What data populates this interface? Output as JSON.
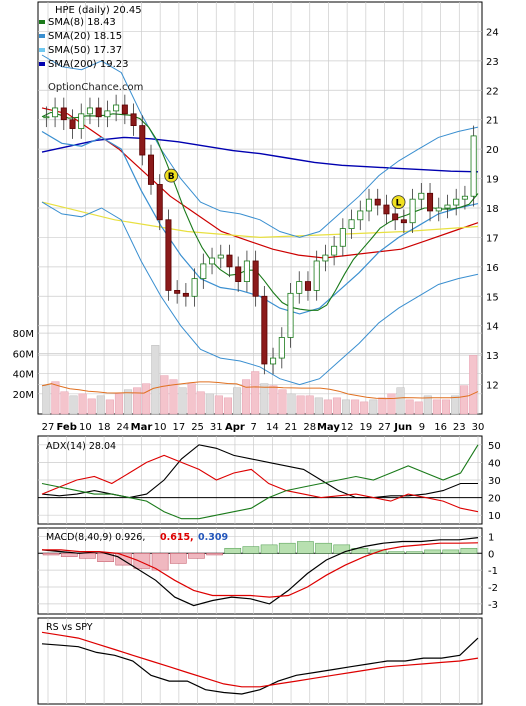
{
  "chart_data": [
    {
      "type": "line",
      "panel": "price",
      "title": "HPE (daily) 20.45",
      "watermark": "OptionChance.com",
      "ylim": [
        11,
        25
      ],
      "y_ticks": [
        12,
        13,
        14,
        15,
        16,
        17,
        18,
        19,
        20,
        21,
        22,
        23,
        24
      ],
      "volume_ticks": [
        "20M",
        "40M",
        "60M",
        "80M"
      ],
      "x_ticks": [
        "27",
        "Feb",
        "10",
        "18",
        "24",
        "Mar",
        "10",
        "17",
        "25",
        "31",
        "Apr",
        "7",
        "14",
        "21",
        "28",
        "May",
        "12",
        "19",
        "27",
        "Jun",
        "9",
        "16",
        "23",
        "30"
      ],
      "legend": [
        {
          "name": "SMA(8) 18.43",
          "color": "#1a7a1a"
        },
        {
          "name": "SMA(20) 18.15",
          "color": "#3a8fd0"
        },
        {
          "name": "SMA(50) 17.37",
          "color": "#70c8f0"
        },
        {
          "name": "SMA(200) 19.23",
          "color": "#0000b0"
        }
      ],
      "markers": [
        {
          "label": "B",
          "x": 0.3,
          "y": 19.1
        },
        {
          "label": "L",
          "x": 0.812,
          "y": 18.2
        }
      ],
      "close_sample": [
        21.1,
        21.4,
        21.0,
        20.7,
        21.2,
        21.4,
        21.1,
        21.3,
        21.5,
        21.2,
        20.8,
        19.8,
        18.8,
        17.6,
        15.2,
        15.1,
        15.0,
        15.6,
        16.1,
        16.3,
        16.4,
        16.0,
        15.5,
        16.2,
        15.0,
        12.7,
        12.9,
        13.6,
        15.1,
        15.5,
        15.2,
        16.2,
        16.4,
        16.7,
        17.3,
        17.6,
        17.9,
        18.3,
        18.1,
        17.8,
        17.6,
        17.5,
        18.3,
        18.5,
        17.9,
        18.0,
        18.1,
        18.3,
        18.4,
        20.45
      ],
      "sma200_sample": [
        19.9,
        20.1,
        20.3,
        20.4,
        20.35,
        20.25,
        20.1,
        19.95,
        19.85,
        19.7,
        19.55,
        19.45,
        19.4,
        19.35,
        19.3,
        19.25,
        19.23
      ],
      "sma50_sample": [
        18.2,
        17.6,
        17.2,
        17.0,
        17.1,
        17.2,
        17.37
      ],
      "sma20_sample": [
        20.6,
        20.2,
        20.1,
        20.4,
        20.0,
        18.6,
        17.4,
        16.4,
        15.6,
        15.3,
        15.2,
        15.0,
        14.6,
        14.4,
        14.6,
        15.2,
        15.8,
        16.5,
        17.0,
        17.4,
        17.8,
        18.0,
        18.15
      ],
      "volume_sample": [
        28,
        32,
        22,
        18,
        20,
        15,
        18,
        14,
        20,
        24,
        26,
        30,
        68,
        38,
        34,
        26,
        30,
        22,
        20,
        18,
        16,
        26,
        34,
        42,
        30,
        28,
        24,
        20,
        18,
        18,
        16,
        14,
        16,
        14,
        14,
        12,
        14,
        16,
        20,
        26,
        14,
        12,
        18,
        14,
        14,
        18,
        28,
        58
      ],
      "volume_ylim": [
        0,
        95
      ]
    },
    {
      "type": "line",
      "panel": "adx",
      "title": "ADX(14) 28.04",
      "ylim": [
        5,
        55
      ],
      "y_ticks": [
        10,
        20,
        30,
        40,
        50
      ],
      "series": [
        {
          "name": "",
          "color": "#000000",
          "values": [
            22,
            21,
            22,
            24,
            22,
            20,
            22,
            30,
            42,
            50,
            48,
            44,
            42,
            40,
            38,
            36,
            30,
            24,
            20,
            20,
            21,
            21,
            22,
            24,
            28,
            28
          ]
        },
        {
          "name": "",
          "color": "#dd0000",
          "values": [
            22,
            26,
            30,
            32,
            28,
            34,
            40,
            44,
            40,
            36,
            30,
            34,
            36,
            28,
            24,
            22,
            20,
            21,
            22,
            20,
            18,
            22,
            20,
            18,
            14,
            12
          ]
        },
        {
          "name": "",
          "color": "#1a7a1a",
          "values": [
            28,
            26,
            24,
            22,
            22,
            20,
            18,
            12,
            8,
            8,
            10,
            12,
            14,
            20,
            24,
            26,
            28,
            30,
            32,
            30,
            34,
            38,
            34,
            30,
            34,
            50
          ]
        }
      ]
    },
    {
      "type": "line",
      "panel": "macd",
      "title": "MACD(8,40,9) 0.926,",
      "signal_label": "0.615,",
      "signal_color": "#dd0000",
      "hist_label": "0.309",
      "hist_color": "#2255bb",
      "ylim": [
        -3.6,
        1.5
      ],
      "y_ticks": [
        1,
        0,
        -1,
        -2,
        -3
      ],
      "series": [
        {
          "name": "",
          "color": "#000000",
          "values": [
            0.2,
            0.1,
            0.0,
            0.1,
            -0.2,
            -0.9,
            -1.6,
            -2.6,
            -3.1,
            -2.8,
            -2.6,
            -2.7,
            -3.0,
            -2.2,
            -1.2,
            -0.4,
            0.1,
            0.4,
            0.6,
            0.7,
            0.7,
            0.8,
            0.8,
            0.93
          ]
        },
        {
          "name": "",
          "color": "#dd0000",
          "values": [
            0.2,
            0.2,
            0.1,
            0.1,
            0.0,
            -0.4,
            -0.9,
            -1.6,
            -2.2,
            -2.5,
            -2.5,
            -2.5,
            -2.6,
            -2.5,
            -2.0,
            -1.3,
            -0.7,
            -0.2,
            0.2,
            0.4,
            0.5,
            0.6,
            0.6,
            0.62
          ]
        }
      ],
      "histogram": [
        -0.1,
        -0.2,
        -0.3,
        -0.5,
        -0.7,
        -0.9,
        -1.0,
        -0.6,
        -0.3,
        -0.1,
        0.3,
        0.4,
        0.5,
        0.6,
        0.7,
        0.6,
        0.5,
        0.3,
        0.2,
        0.1,
        0.1,
        0.2,
        0.2,
        0.3
      ]
    },
    {
      "type": "line",
      "panel": "rs",
      "title": "RS vs SPY",
      "series": [
        {
          "name": "",
          "color": "#000000",
          "values": [
            0.62,
            0.61,
            0.6,
            0.56,
            0.54,
            0.5,
            0.4,
            0.36,
            0.36,
            0.3,
            0.28,
            0.27,
            0.3,
            0.36,
            0.4,
            0.42,
            0.44,
            0.46,
            0.48,
            0.5,
            0.5,
            0.52,
            0.52,
            0.54,
            0.66
          ]
        },
        {
          "name": "",
          "color": "#dd0000",
          "values": [
            0.7,
            0.68,
            0.66,
            0.62,
            0.58,
            0.54,
            0.5,
            0.46,
            0.42,
            0.38,
            0.34,
            0.32,
            0.32,
            0.34,
            0.36,
            0.38,
            0.4,
            0.42,
            0.44,
            0.46,
            0.47,
            0.48,
            0.49,
            0.5,
            0.52
          ]
        }
      ],
      "ylim": [
        0.2,
        0.8
      ]
    }
  ]
}
